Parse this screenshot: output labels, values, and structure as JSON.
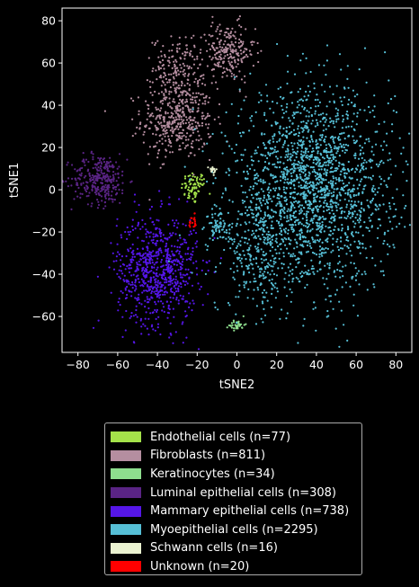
{
  "chart_data": {
    "type": "scatter",
    "xlabel": "tSNE2",
    "ylabel": "tSNE1",
    "xlim": [
      -88,
      88
    ],
    "ylim": [
      -77,
      86
    ],
    "xticks": [
      -80,
      -60,
      -40,
      -20,
      0,
      20,
      40,
      60,
      80
    ],
    "yticks": [
      -60,
      -40,
      -20,
      0,
      20,
      40,
      60,
      80
    ],
    "legend_position": "below",
    "series": [
      {
        "name": "Endothelial cells (n=77)",
        "color": "#a4e24a",
        "clusters": [
          {
            "cx": -22,
            "cy": 1,
            "sx": 3,
            "sy": 4,
            "n": 70
          },
          {
            "cx": -18,
            "cy": 4,
            "sx": 1,
            "sy": 1.5,
            "n": 7
          }
        ]
      },
      {
        "name": "Fibroblasts (n=811)",
        "color": "#b58ea0",
        "clusters": [
          {
            "cx": -30,
            "cy": 33,
            "sx": 9,
            "sy": 9,
            "n": 420
          },
          {
            "cx": -30,
            "cy": 58,
            "sx": 6,
            "sy": 7,
            "n": 160
          },
          {
            "cx": -5,
            "cy": 65,
            "sx": 7,
            "sy": 7,
            "n": 231
          }
        ]
      },
      {
        "name": "Keratinocytes (n=34)",
        "color": "#8ede8e",
        "clusters": [
          {
            "cx": 0,
            "cy": -64,
            "sx": 2,
            "sy": 1.2,
            "n": 34
          }
        ]
      },
      {
        "name": "Luminal epithelial cells (n=308)",
        "color": "#5a2485",
        "clusters": [
          {
            "cx": -69,
            "cy": 5,
            "sx": 7,
            "sy": 6,
            "n": 308
          }
        ]
      },
      {
        "name": "Mammary epithelial cells (n=738)",
        "color": "#5516e8",
        "clusters": [
          {
            "cx": -40,
            "cy": -38,
            "sx": 10,
            "sy": 13,
            "n": 738
          }
        ]
      },
      {
        "name": "Myoepithelial cells (n=2295)",
        "color": "#56bfd6",
        "clusters": [
          {
            "cx": 38,
            "cy": 0,
            "sx": 20,
            "sy": 23,
            "n": 2000
          },
          {
            "cx": 10,
            "cy": -30,
            "sx": 8,
            "sy": 13,
            "n": 235
          },
          {
            "cx": -10,
            "cy": -17,
            "sx": 2.5,
            "sy": 3,
            "n": 60
          }
        ]
      },
      {
        "name": "Schwann cells (n=16)",
        "color": "#eaf2d0",
        "clusters": [
          {
            "cx": -12,
            "cy": 9,
            "sx": 1,
            "sy": 1,
            "n": 16
          }
        ]
      },
      {
        "name": "Unknown (n=20)",
        "color": "#ff0000",
        "clusters": [
          {
            "cx": -22,
            "cy": -15,
            "sx": 1,
            "sy": 1.5,
            "n": 20
          }
        ]
      }
    ]
  }
}
